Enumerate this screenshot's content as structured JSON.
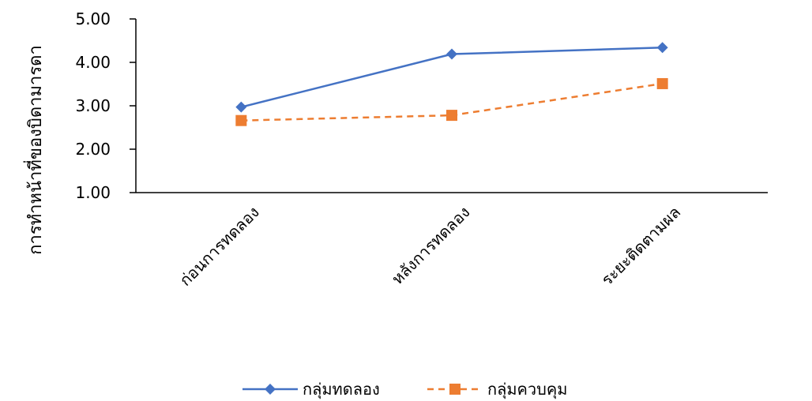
{
  "chart_data": {
    "type": "line",
    "ylabel": "การทำหน้าที่ของบิดามารดา",
    "categories": [
      "ก่อนการทดลอง",
      "หลังการทดลอง",
      "ระยะติดตามผล"
    ],
    "y_ticks": [
      "1.00",
      "2.00",
      "3.00",
      "4.00",
      "5.00"
    ],
    "ylim": [
      1,
      5
    ],
    "grid": false,
    "legend_position": "bottom",
    "series": [
      {
        "name": "กลุ่มทดลอง",
        "values": [
          2.97,
          4.19,
          4.34
        ],
        "color": "#4472C4",
        "marker": "diamond",
        "dash": "solid"
      },
      {
        "name": "กลุ่มควบคุม",
        "values": [
          2.66,
          2.78,
          3.51
        ],
        "color": "#ED7D31",
        "marker": "square",
        "dash": "dashed"
      }
    ]
  }
}
